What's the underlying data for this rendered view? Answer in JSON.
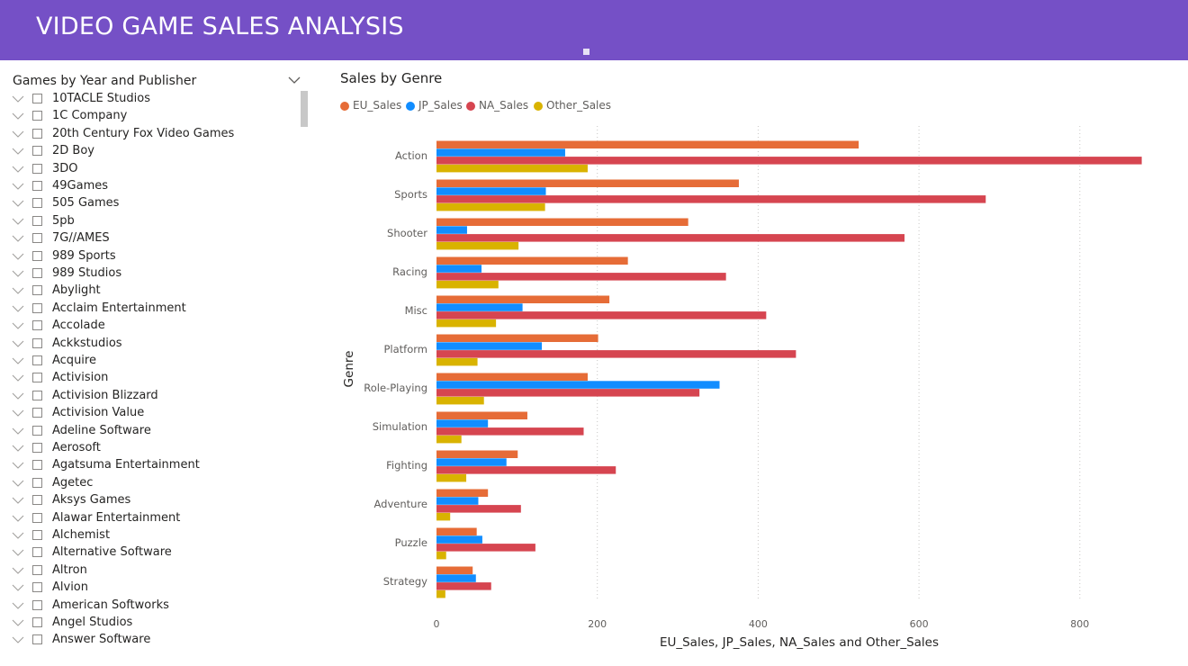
{
  "header": {
    "title": "VIDEO GAME SALES ANALYSIS"
  },
  "slicer": {
    "title": "Games by Year and Publisher",
    "items": [
      "10TACLE Studios",
      "1C Company",
      "20th Century Fox Video Games",
      "2D Boy",
      "3DO",
      "49Games",
      "505 Games",
      "5pb",
      "7G//AMES",
      "989 Sports",
      "989 Studios",
      "Abylight",
      "Acclaim Entertainment",
      "Accolade",
      "Ackkstudios",
      "Acquire",
      "Activision",
      "Activision Blizzard",
      "Activision Value",
      "Adeline Software",
      "Aerosoft",
      "Agatsuma Entertainment",
      "Agetec",
      "Aksys Games",
      "Alawar Entertainment",
      "Alchemist",
      "Alternative Software",
      "Altron",
      "Alvion",
      "American Softworks",
      "Angel Studios",
      "Answer Software"
    ]
  },
  "chart_data": {
    "type": "bar",
    "orientation": "horizontal",
    "title": "Sales by Genre",
    "xlabel": "EU_Sales, JP_Sales, NA_Sales and Other_Sales",
    "ylabel": "Genre",
    "xlim": [
      0,
      900
    ],
    "xticks": [
      0,
      200,
      400,
      600,
      800
    ],
    "grid": true,
    "legend_position": "top-left",
    "categories": [
      "Action",
      "Sports",
      "Shooter",
      "Racing",
      "Misc",
      "Platform",
      "Role-Playing",
      "Simulation",
      "Fighting",
      "Adventure",
      "Puzzle",
      "Strategy"
    ],
    "series": [
      {
        "name": "EU_Sales",
        "color": "#e66c37",
        "values": [
          525,
          376,
          313,
          238,
          215,
          201,
          188,
          113,
          101,
          64,
          50,
          45
        ]
      },
      {
        "name": "JP_Sales",
        "color": "#118dff",
        "values": [
          160,
          136,
          38,
          56,
          107,
          131,
          352,
          64,
          87,
          52,
          57,
          49
        ]
      },
      {
        "name": "NA_Sales",
        "color": "#d64550",
        "values": [
          877,
          683,
          582,
          360,
          410,
          447,
          327,
          183,
          223,
          105,
          123,
          68
        ]
      },
      {
        "name": "Other_Sales",
        "color": "#d9b300",
        "values": [
          188,
          135,
          102,
          77,
          74,
          51,
          59,
          31,
          37,
          17,
          12,
          11
        ]
      }
    ]
  }
}
